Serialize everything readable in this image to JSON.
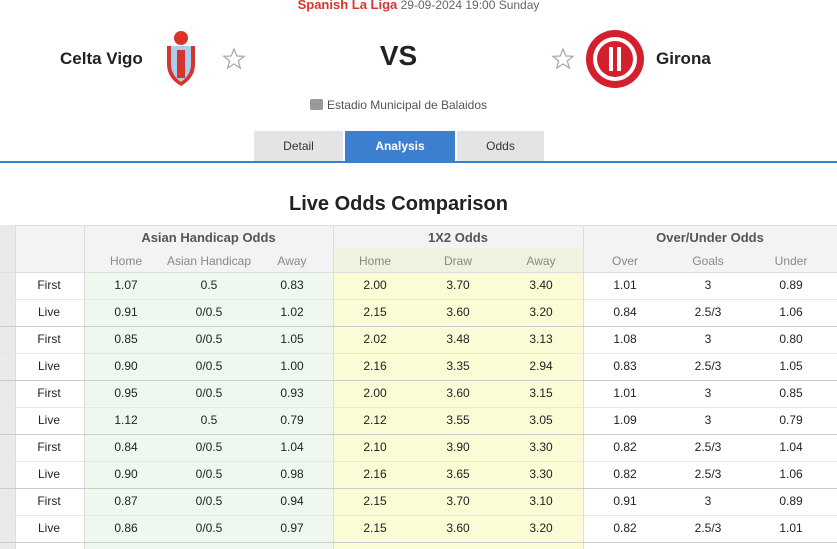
{
  "header": {
    "league": "Spanish La Liga",
    "datetime": "29-09-2024 19:00 Sunday",
    "home": "Celta Vigo",
    "vs": "VS",
    "away": "Girona",
    "stadium": "Estadio Municipal de Balaidos"
  },
  "tabs": [
    "Detail",
    "Analysis",
    "Odds"
  ],
  "section_title": "Live Odds Comparison",
  "table": {
    "groups": [
      "Asian Handicap Odds",
      "1X2 Odds",
      "Over/Under Odds"
    ],
    "columns": [
      "Home",
      "Asian Handicap",
      "Away",
      "Home",
      "Draw",
      "Away",
      "Over",
      "Goals",
      "Under"
    ],
    "rows": [
      [
        "First",
        "1.07",
        "0.5",
        "0.83",
        "2.00",
        "3.70",
        "3.40",
        "1.01",
        "3",
        "0.89"
      ],
      [
        "Live",
        "0.91",
        "0/0.5",
        "1.02",
        "2.15",
        "3.60",
        "3.20",
        "0.84",
        "2.5/3",
        "1.06"
      ],
      [
        "First",
        "0.85",
        "0/0.5",
        "1.05",
        "2.02",
        "3.48",
        "3.13",
        "1.08",
        "3",
        "0.80"
      ],
      [
        "Live",
        "0.90",
        "0/0.5",
        "1.00",
        "2.16",
        "3.35",
        "2.94",
        "0.83",
        "2.5/3",
        "1.05"
      ],
      [
        "First",
        "0.95",
        "0/0.5",
        "0.93",
        "2.00",
        "3.60",
        "3.15",
        "1.01",
        "3",
        "0.85"
      ],
      [
        "Live",
        "1.12",
        "0.5",
        "0.79",
        "2.12",
        "3.55",
        "3.05",
        "1.09",
        "3",
        "0.79"
      ],
      [
        "First",
        "0.84",
        "0/0.5",
        "1.04",
        "2.10",
        "3.90",
        "3.30",
        "0.82",
        "2.5/3",
        "1.04"
      ],
      [
        "Live",
        "0.90",
        "0/0.5",
        "0.98",
        "2.16",
        "3.65",
        "3.30",
        "0.82",
        "2.5/3",
        "1.06"
      ],
      [
        "First",
        "0.87",
        "0/0.5",
        "0.94",
        "2.15",
        "3.70",
        "3.10",
        "0.91",
        "3",
        "0.89"
      ],
      [
        "Live",
        "0.86",
        "0/0.5",
        "0.97",
        "2.15",
        "3.60",
        "3.20",
        "0.82",
        "2.5/3",
        "1.01"
      ]
    ]
  }
}
